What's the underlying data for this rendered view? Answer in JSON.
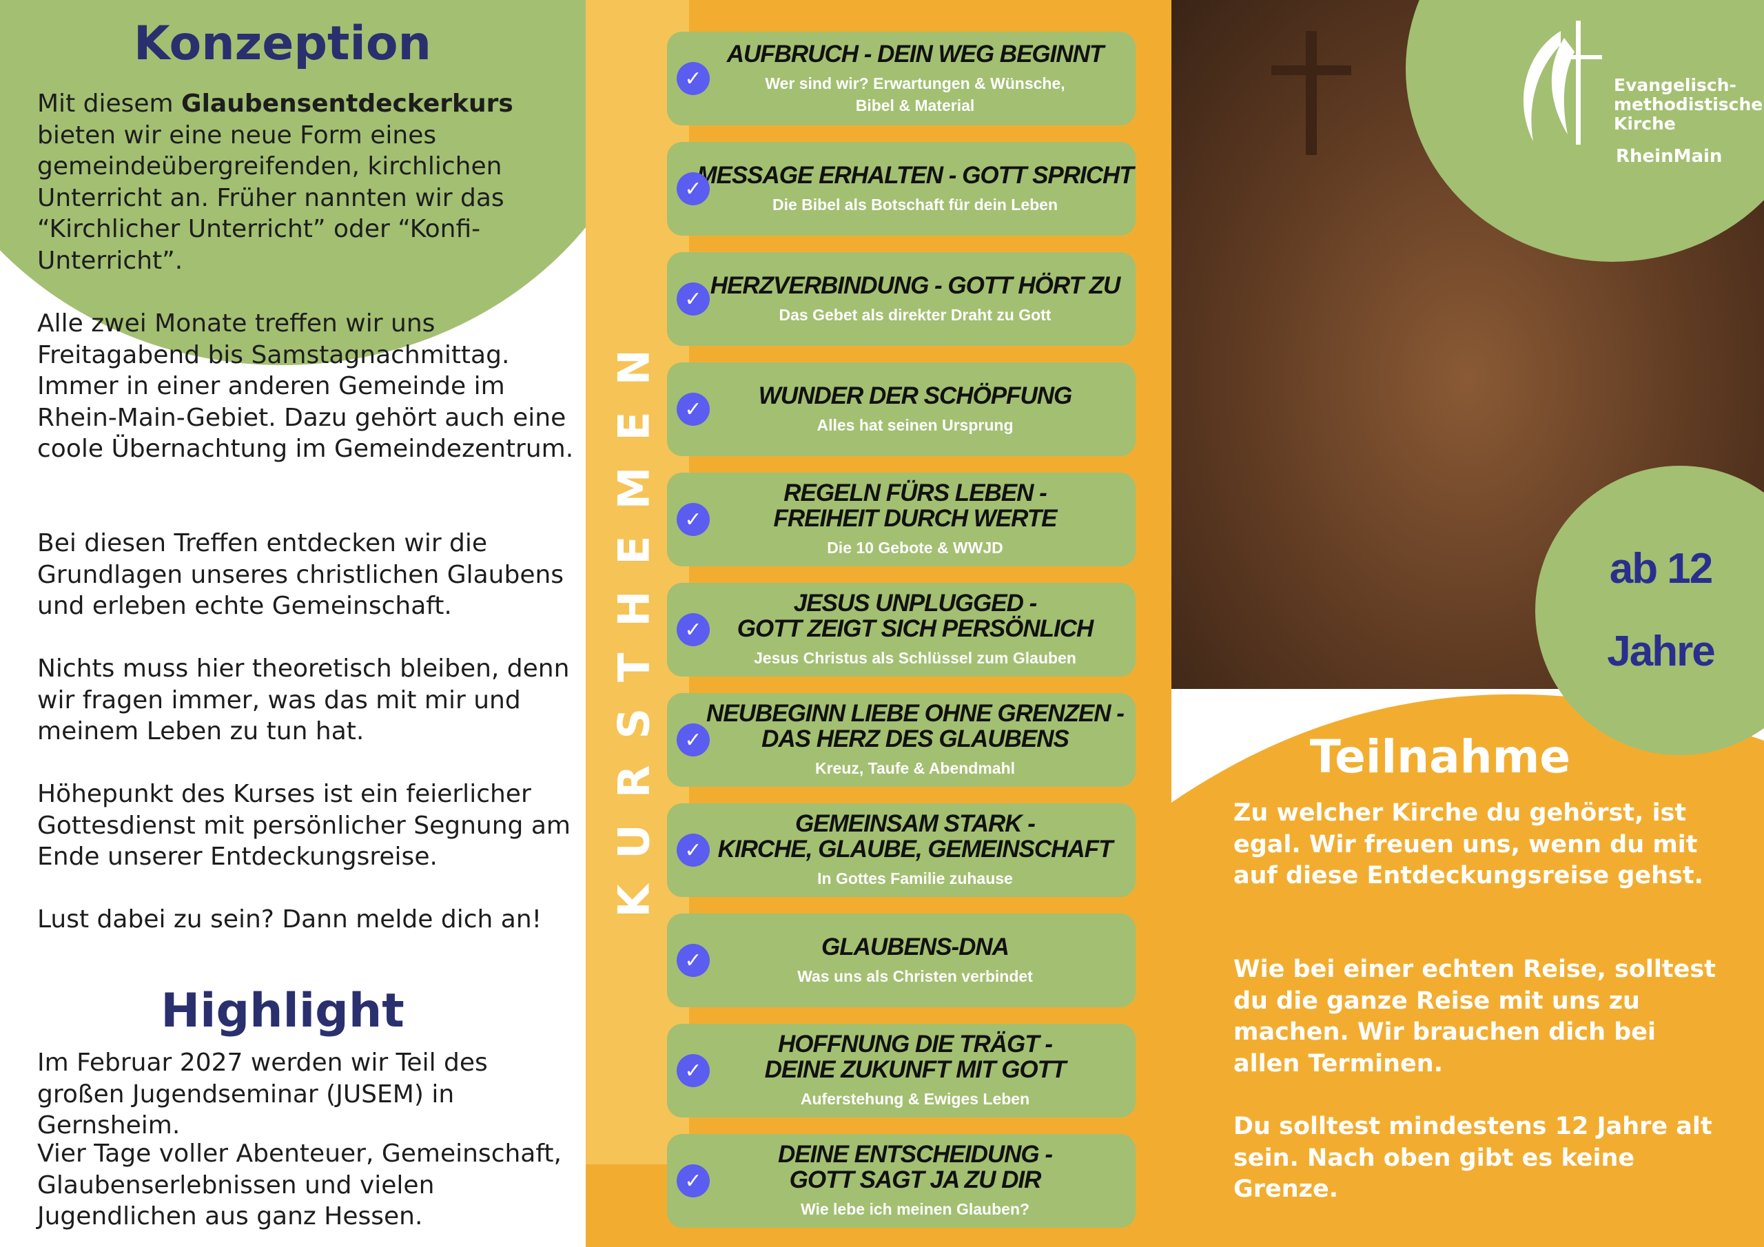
{
  "left": {
    "konzeption_title": "Konzeption",
    "intro_prefix": "Mit diesem ",
    "intro_bold": "Glaubensentdeckerkurs",
    "intro_rest": " bieten wir eine neue Form eines gemeindeübergreifenden, kirchlichen Unterricht an. Früher nannten wir das “Kirchlicher Unterricht” oder “Konfi-Unterricht”.",
    "p2": "Alle zwei Monate treffen wir uns Freitagabend bis Samstagnachmittag. Immer in einer anderen Gemeinde im Rhein-Main-Gebiet. Dazu gehört auch eine coole Übernachtung im Gemeindezentrum.",
    "p3": "Bei diesen Treffen entdecken wir die Grundlagen unseres christlichen Glaubens und erleben echte Gemeinschaft.",
    "p4": "Nichts muss hier theoretisch bleiben, denn wir fragen immer, was das mit mir und meinem Leben zu tun hat.",
    "p5": "Höhepunkt des Kurses ist ein feierlicher Gottesdienst mit persönlicher Segnung am Ende unserer Entdeckungsreise.",
    "p6": "Lust dabei zu sein? Dann melde dich an!",
    "highlight_title": "Highlight",
    "h1": "Im Februar 2027 werden wir Teil des großen Jugendseminar (JUSEM) in Gernsheim.",
    "h2": "Vier Tage voller Abenteuer, Gemeinschaft, Glaubenserlebnissen und vielen Jugendlichen aus ganz Hessen."
  },
  "middle": {
    "vertical_label": "KURSTHEMEN",
    "check_icon": "check-circle-icon",
    "topics": [
      {
        "title": "AUFBRUCH - DEIN WEG BEGINNT",
        "subtitle": "Wer sind wir? Erwartungen & Wünsche,\nBibel & Material"
      },
      {
        "title": "MESSAGE ERHALTEN - GOTT SPRICHT",
        "subtitle": "Die Bibel als Botschaft für dein Leben"
      },
      {
        "title": "HERZVERBINDUNG - GOTT HÖRT ZU",
        "subtitle": "Das Gebet als direkter Draht zu Gott"
      },
      {
        "title": "WUNDER DER SCHÖPFUNG",
        "subtitle": "Alles hat seinen Ursprung"
      },
      {
        "title": "REGELN FÜRS LEBEN -\nFREIHEIT DURCH WERTE",
        "subtitle": "Die 10 Gebote & WWJD"
      },
      {
        "title": "JESUS UNPLUGGED -\nGOTT ZEIGT SICH PERSÖNLICH",
        "subtitle": "Jesus Christus als Schlüssel zum Glauben"
      },
      {
        "title": "NEUBEGINN LIEBE OHNE GRENZEN -\nDAS HERZ DES GLAUBENS",
        "subtitle": "Kreuz, Taufe & Abendmahl"
      },
      {
        "title": "GEMEINSAM STARK -\nKIRCHE, GLAUBE, GEMEINSCHAFT",
        "subtitle": "In Gottes Familie zuhause"
      },
      {
        "title": "GLAUBENS-DNA",
        "subtitle": "Was uns als Christen verbindet"
      },
      {
        "title": "HOFFNUNG DIE TRÄGT -\nDEINE ZUKUNFT MIT GOTT",
        "subtitle": "Auferstehung & Ewiges Leben"
      },
      {
        "title": "DEINE ENTSCHEIDUNG -\nGOTT SAGT JA ZU DIR",
        "subtitle": "Wie lebe ich meinen Glauben?"
      }
    ]
  },
  "right": {
    "logo": {
      "line1": "Evangelisch-",
      "line2": "methodistische",
      "line3": "Kirche",
      "sub": "RheinMain"
    },
    "age_line1": "ab 12",
    "age_line2": "Jahre",
    "teilnahme_title": "Teilnahme",
    "t1": "Zu welcher Kirche du gehörst, ist egal. Wir freuen uns, wenn du mit auf diese Entdeckungsreise gehst.",
    "t2": "Wie bei einer echten Reise, solltest du die ganze Reise mit uns zu machen. Wir brauchen dich bei allen Terminen.",
    "t3": "Du solltest mindestens 12 Jahre alt sein. Nach oben gibt es keine Grenze."
  },
  "colors": {
    "green": "#a3bf72",
    "orange": "#f2ad30",
    "navy": "#2a2f6e",
    "check": "#5b5cf0"
  }
}
